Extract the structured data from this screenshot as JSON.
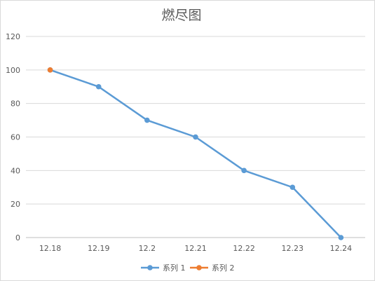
{
  "chart_data": {
    "type": "line",
    "title": "燃尽图",
    "xlabel": "",
    "ylabel": "",
    "categories": [
      "12.18",
      "12.19",
      "12.2",
      "12.21",
      "12.22",
      "12.23",
      "12.24"
    ],
    "ylim": [
      0,
      120
    ],
    "yticks": [
      "0",
      "20",
      "40",
      "60",
      "80",
      "100",
      "120"
    ],
    "grid": true,
    "legend_position": "bottom",
    "series": [
      {
        "name": "系列 1",
        "color": "#5b9bd5",
        "values": [
          100,
          90,
          70,
          60,
          40,
          30,
          0
        ]
      },
      {
        "name": "系列 2",
        "color": "#ed7d31",
        "values": [
          100,
          null,
          null,
          null,
          null,
          null,
          null
        ]
      }
    ]
  }
}
